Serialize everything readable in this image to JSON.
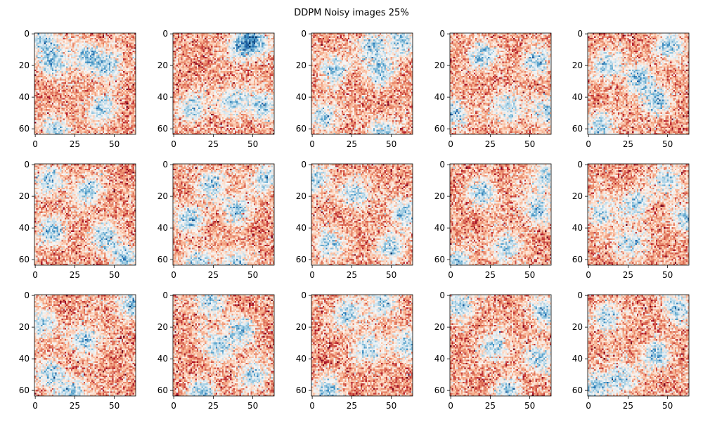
{
  "chart_data": {
    "type": "heatmap",
    "title": "DDPM Noisy images 25%",
    "grid": false,
    "rows": 3,
    "cols": 5,
    "image_size": 64,
    "colormap": "RdBu_r",
    "colormap_stops": [
      "#053061",
      "#2166ac",
      "#4393c3",
      "#92c5de",
      "#d1e5f0",
      "#f7f7f7",
      "#fddbc7",
      "#f4a582",
      "#d6604d",
      "#b2182b",
      "#67001f"
    ],
    "xlim": [
      -0.5,
      63.5
    ],
    "ylim": [
      63.5,
      -0.5
    ],
    "x_ticks": [
      "0",
      "25",
      "50"
    ],
    "y_ticks": [
      "0",
      "20",
      "40",
      "60"
    ],
    "panels": [
      {
        "blobs": [
          [
            12,
            18
          ],
          [
            5,
            4
          ],
          [
            32,
            14
          ],
          [
            47,
            20
          ],
          [
            42,
            47
          ],
          [
            14,
            62
          ]
        ]
      },
      {
        "blobs": [
          [
            43,
            8
          ],
          [
            37,
            42
          ],
          [
            12,
            47
          ],
          [
            52,
            5
          ],
          [
            56,
            45
          ]
        ]
      },
      {
        "blobs": [
          [
            43,
            23
          ],
          [
            14,
            22
          ],
          [
            8,
            52
          ],
          [
            44,
            62
          ],
          [
            58,
            3
          ],
          [
            38,
            8
          ]
        ]
      },
      {
        "blobs": [
          [
            20,
            14
          ],
          [
            55,
            18
          ],
          [
            36,
            46
          ],
          [
            2,
            50
          ],
          [
            62,
            49
          ]
        ]
      },
      {
        "blobs": [
          [
            42,
            42
          ],
          [
            12,
            20
          ],
          [
            8,
            58
          ],
          [
            52,
            8
          ],
          [
            32,
            28
          ]
        ]
      },
      {
        "blobs": [
          [
            8,
            10
          ],
          [
            34,
            16
          ],
          [
            10,
            42
          ],
          [
            44,
            46
          ],
          [
            56,
            60
          ]
        ]
      },
      {
        "blobs": [
          [
            10,
            34
          ],
          [
            24,
            12
          ],
          [
            40,
            28
          ],
          [
            14,
            62
          ],
          [
            40,
            62
          ],
          [
            58,
            8
          ]
        ]
      },
      {
        "blobs": [
          [
            28,
            18
          ],
          [
            10,
            50
          ],
          [
            50,
            52
          ],
          [
            2,
            10
          ],
          [
            58,
            30
          ]
        ]
      },
      {
        "blobs": [
          [
            20,
            18
          ],
          [
            34,
            52
          ],
          [
            54,
            28
          ],
          [
            4,
            62
          ],
          [
            60,
            8
          ]
        ]
      },
      {
        "blobs": [
          [
            26,
            50
          ],
          [
            8,
            30
          ],
          [
            50,
            10
          ],
          [
            62,
            34
          ],
          [
            30,
            24
          ]
        ]
      },
      {
        "blobs": [
          [
            32,
            28
          ],
          [
            60,
            6
          ],
          [
            10,
            50
          ],
          [
            24,
            62
          ],
          [
            4,
            18
          ]
        ]
      },
      {
        "blobs": [
          [
            28,
            32
          ],
          [
            42,
            22
          ],
          [
            18,
            62
          ],
          [
            50,
            50
          ],
          [
            22,
            4
          ]
        ]
      },
      {
        "blobs": [
          [
            36,
            34
          ],
          [
            60,
            30
          ],
          [
            44,
            4
          ],
          [
            10,
            60
          ],
          [
            22,
            12
          ]
        ]
      },
      {
        "blobs": [
          [
            28,
            32
          ],
          [
            56,
            40
          ],
          [
            6,
            6
          ],
          [
            58,
            10
          ],
          [
            36,
            62
          ]
        ]
      },
      {
        "blobs": [
          [
            20,
            52
          ],
          [
            42,
            38
          ],
          [
            12,
            14
          ],
          [
            56,
            8
          ],
          [
            4,
            58
          ]
        ]
      }
    ]
  }
}
